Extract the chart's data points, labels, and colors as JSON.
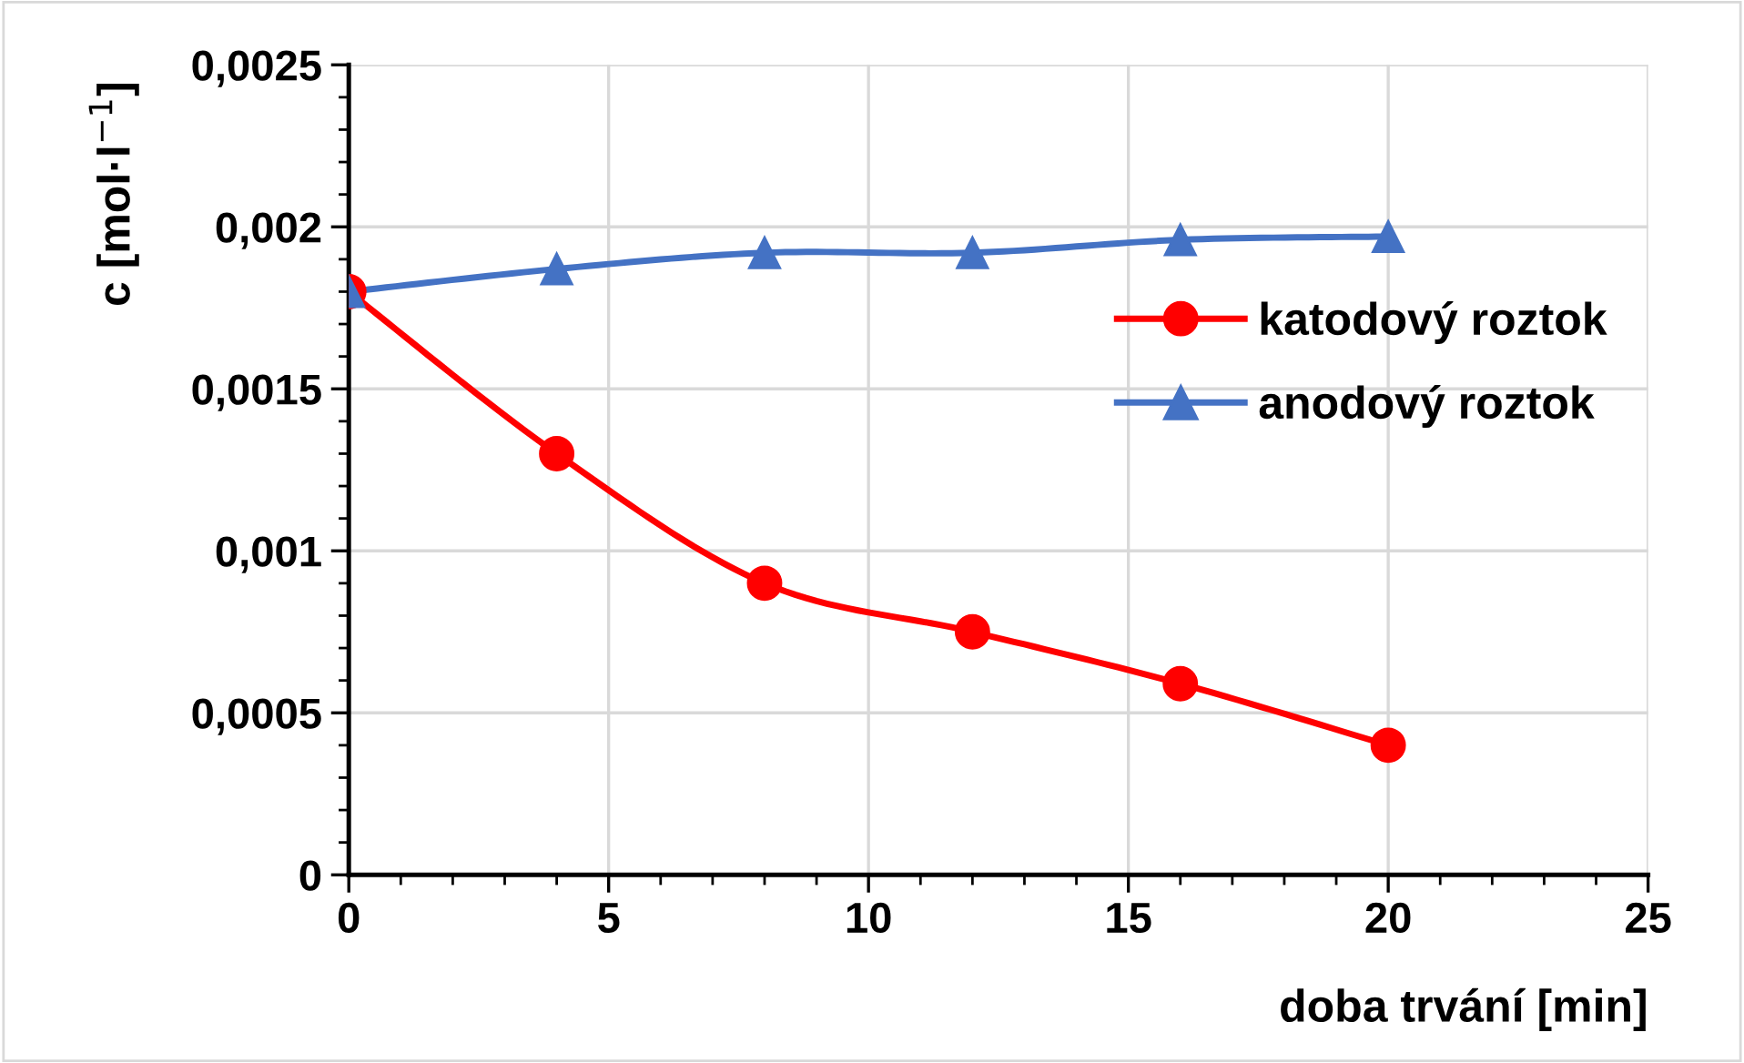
{
  "chart_data": {
    "type": "line",
    "xlabel": "doba trvání [min]",
    "ylabel": "c [mol·l$^{−1}$]",
    "x": [
      0,
      4,
      8,
      12,
      16,
      20
    ],
    "series": [
      {
        "name": "katodový roztok",
        "color": "#ff0000",
        "marker": "circle",
        "values": [
          0.0018,
          0.0013,
          0.0009,
          0.00075,
          0.00059,
          0.0004
        ]
      },
      {
        "name": "anodový roztok",
        "color": "#4472c4",
        "marker": "triangle",
        "values": [
          0.0018,
          0.00187,
          0.00192,
          0.00192,
          0.00196,
          0.00197
        ]
      }
    ],
    "xlim": [
      0,
      25
    ],
    "xticks": [
      0,
      5,
      10,
      15,
      20,
      25
    ],
    "ylim": [
      0,
      0.0025
    ],
    "yticks": [
      0,
      {
        "value": 0.0005,
        "label": "0,0005"
      },
      {
        "value": 0.001,
        "label": "0,001"
      },
      {
        "value": 0.0015,
        "label": "0,0015"
      },
      {
        "value": 0.002,
        "label": "0,002"
      },
      {
        "value": 0.0025,
        "label": "0,0025"
      }
    ],
    "grid": true,
    "legend": "right",
    "line_style": "solid"
  }
}
